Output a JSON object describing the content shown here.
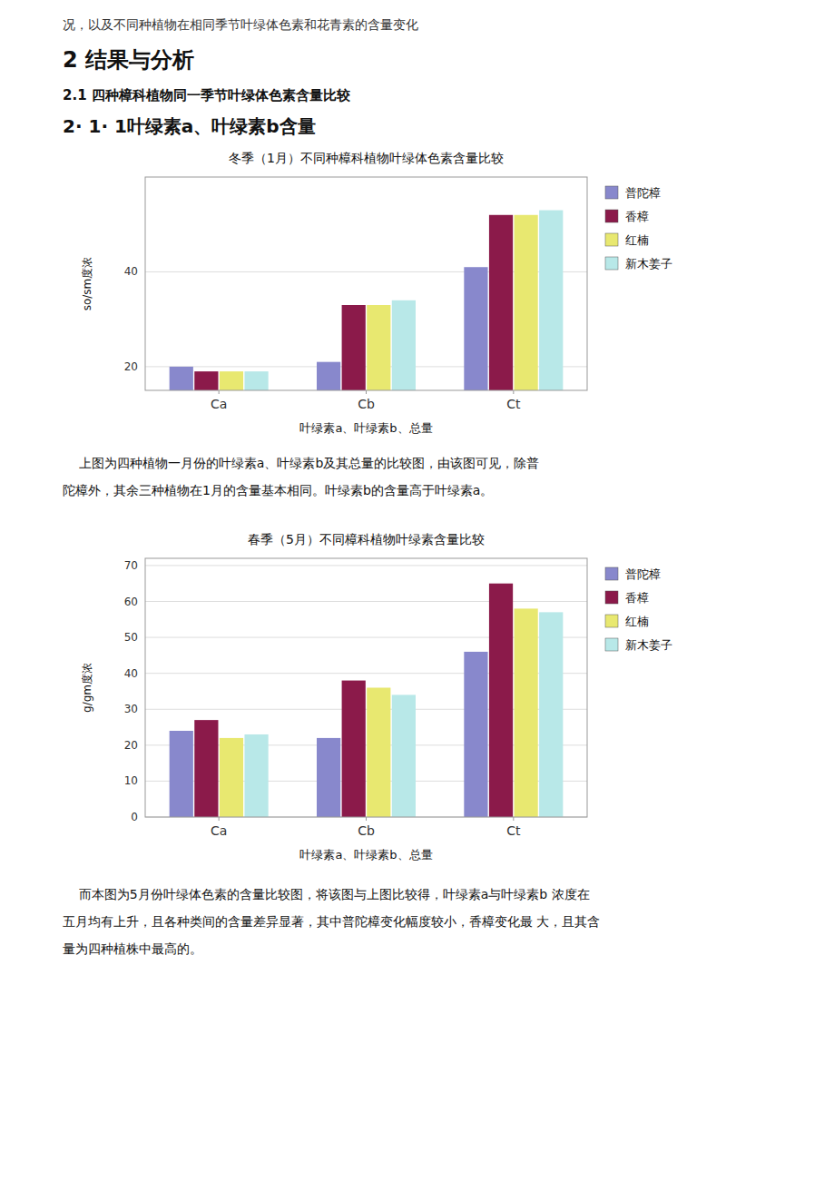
{
  "page_text_top": "况，以及不同种植物在相同季节叶绿体色素和花青素的含量变化",
  "heading1": "2 结果与分析",
  "heading2": "2.1 四种樟科植物同一季节叶绿体色素含量比较",
  "heading3": "2· 1· 1叶绿素a、叶绿素b含量",
  "paragraph1": [
    "    上图为四种植物一月份的叶绿素a、叶绿素b及其总量的比较图，由该图可见，除普",
    "陀樟外，其余三种植物在1月的含量基本相同。叶绿素b的含量高于叶绿素a。"
  ],
  "paragraph2": [
    "    而本图为5月份叶绿体色素的含量比较图，将该图与上图比较得，叶绿素a与叶绿素b 浓度在",
    "五月均有上升，且各种类间的含量差异显著，其中普陀樟变化幅度较小，香樟变化最 大，且其含",
    "量为四种植株中最高的。"
  ],
  "chart_data": [
    {
      "type": "bar",
      "title": "冬季（1月）不同种樟科植物叶绿体色素含量比较",
      "x_label": "叶绿素a、叶绿素b、总量",
      "y_label": "so/sm度浓",
      "categories": [
        "Ca",
        "Cb",
        "Ct"
      ],
      "series": [
        {
          "name": "普陀樟",
          "color": "#8888cc",
          "values": [
            20,
            21,
            41
          ]
        },
        {
          "name": "香樟",
          "color": "#8b1a4a",
          "values": [
            19,
            33,
            52
          ]
        },
        {
          "name": "红楠",
          "color": "#e8e870",
          "values": [
            19,
            33,
            52
          ]
        },
        {
          "name": "新木姜子",
          "color": "#b8e8e8",
          "values": [
            19,
            34,
            53
          ]
        }
      ],
      "ylim": [
        15,
        60
      ],
      "yticks": [
        20,
        40
      ],
      "grid": true,
      "legend": "right"
    },
    {
      "type": "bar",
      "title": "春季（5月）不同樟科植物叶绿素含量比较",
      "x_label": "叶绿素a、叶绿素b、总量",
      "y_label": "g/gm度浓",
      "categories": [
        "Ca",
        "Cb",
        "Ct"
      ],
      "series": [
        {
          "name": "普陀樟",
          "color": "#8888cc",
          "values": [
            24,
            22,
            46
          ]
        },
        {
          "name": "香樟",
          "color": "#8b1a4a",
          "values": [
            27,
            38,
            65
          ]
        },
        {
          "name": "红楠",
          "color": "#e8e870",
          "values": [
            22,
            36,
            58
          ]
        },
        {
          "name": "新木姜子",
          "color": "#b8e8e8",
          "values": [
            23,
            34,
            57
          ]
        }
      ],
      "ylim": [
        0,
        72
      ],
      "yticks": [
        0,
        10,
        20,
        30,
        40,
        50,
        60,
        70
      ],
      "grid": true,
      "legend": "right"
    }
  ]
}
